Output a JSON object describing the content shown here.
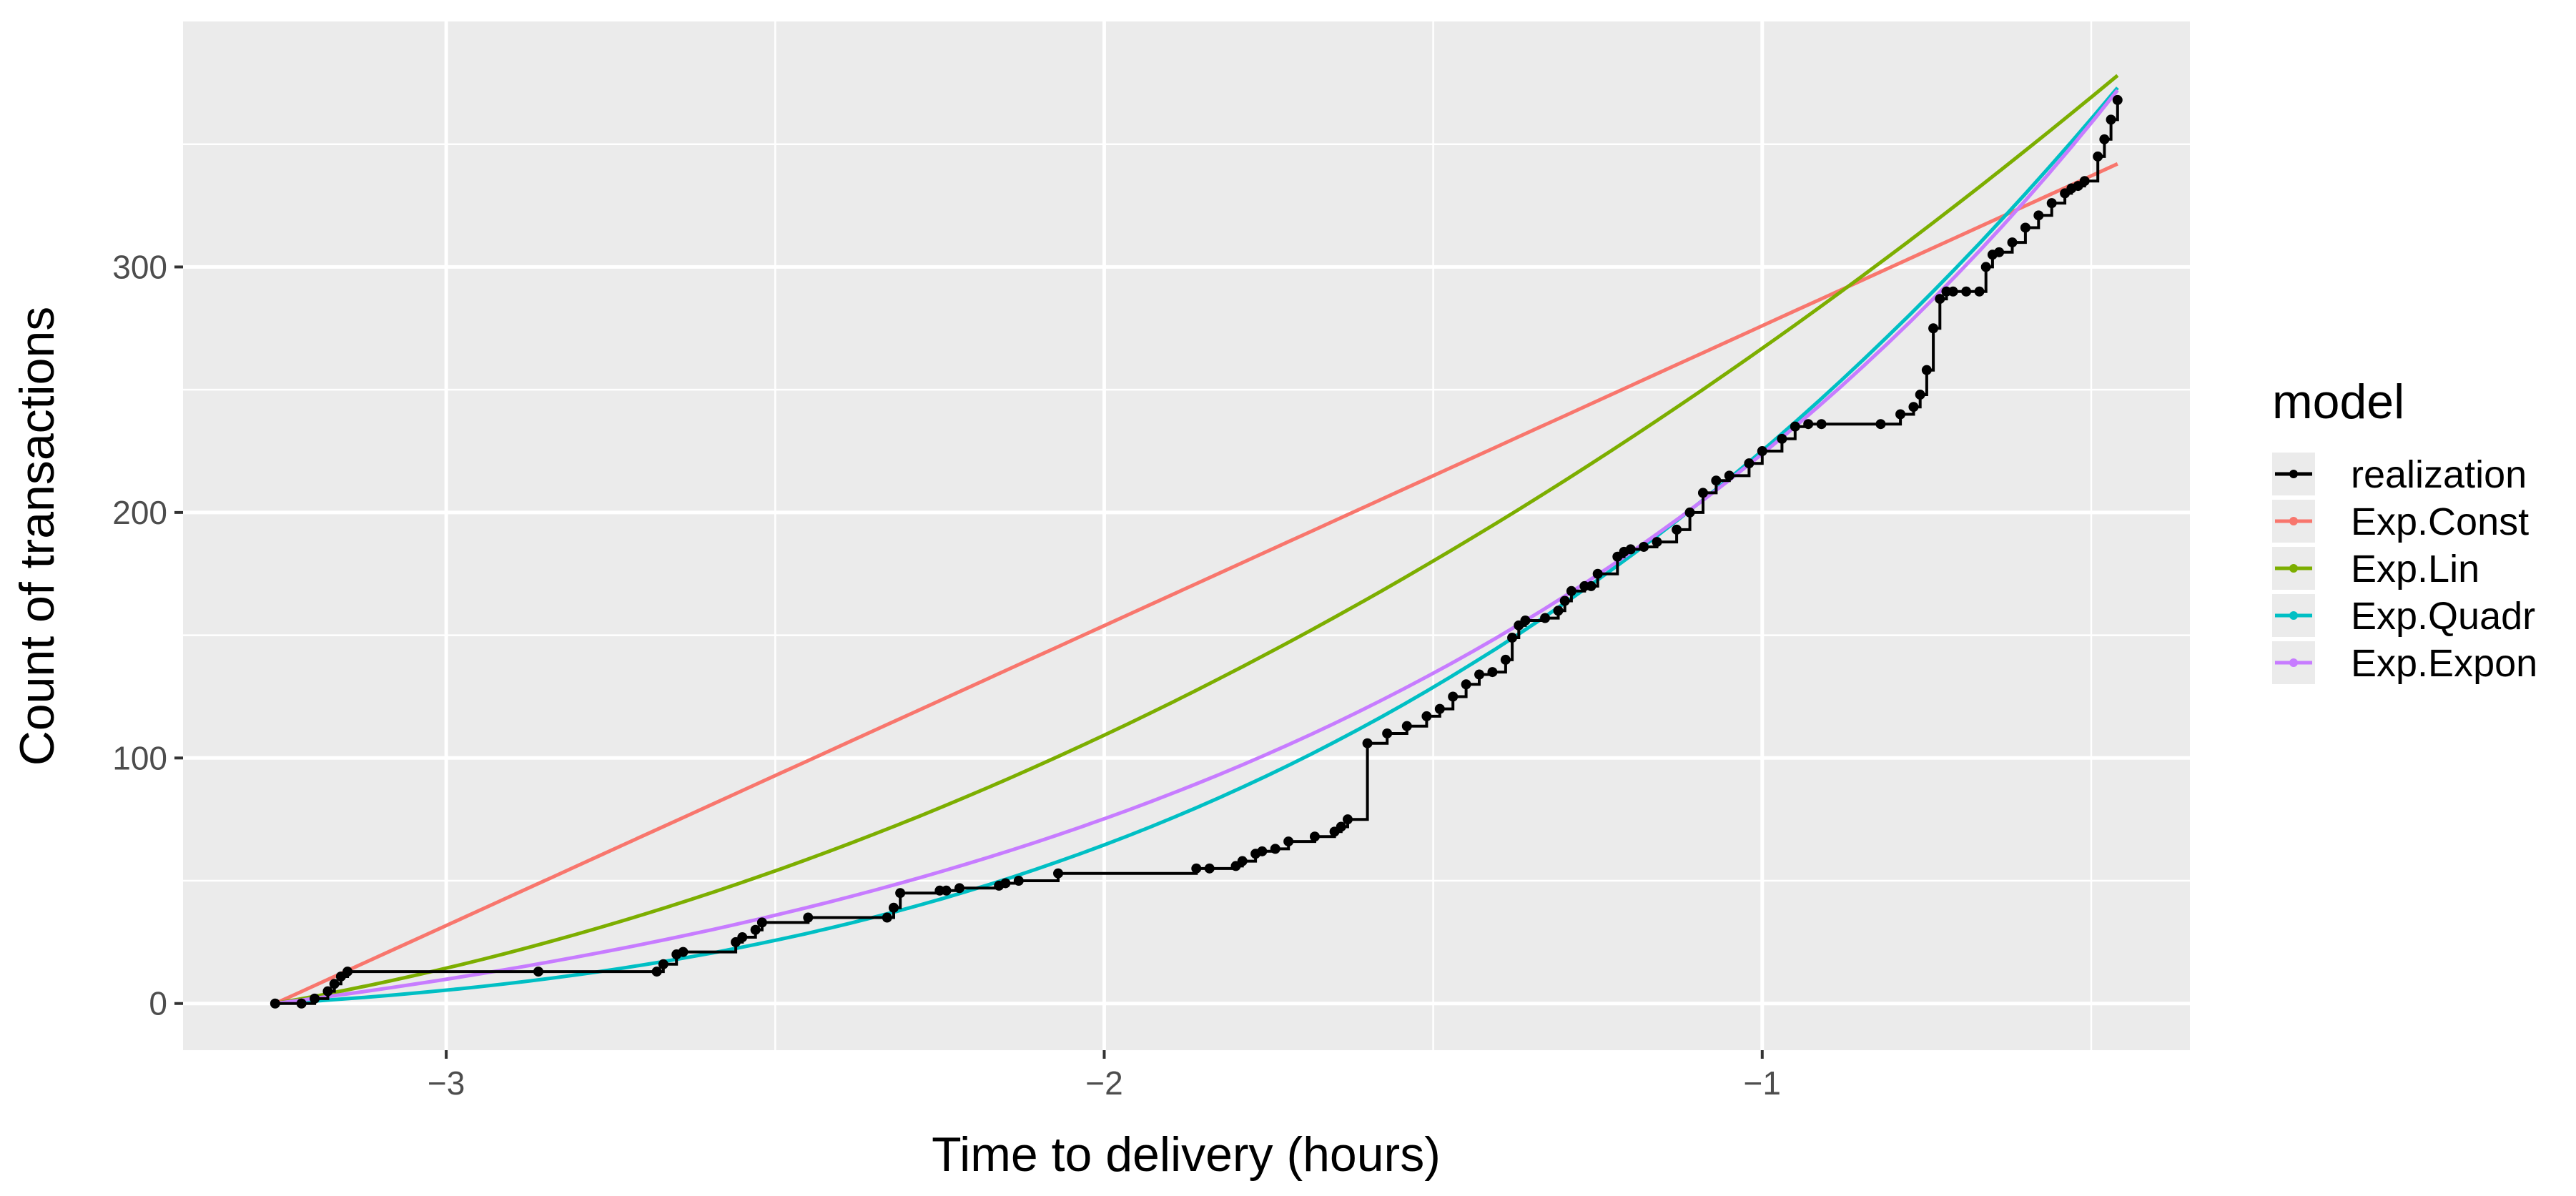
{
  "chart_data": {
    "type": "line",
    "xlabel": "Time to delivery (hours)",
    "ylabel": "Count of transactions",
    "xlim": [
      -3.4,
      -0.35
    ],
    "ylim": [
      -19,
      400
    ],
    "x_ticks": [
      -3,
      -2,
      -1
    ],
    "x_tick_labels": [
      "−3",
      "−2",
      "−1"
    ],
    "y_ticks": [
      0,
      100,
      200,
      300
    ],
    "y_tick_labels": [
      "0",
      "100",
      "200",
      "300"
    ],
    "grid": true,
    "panel_background": "#ebebeb",
    "legend": {
      "title": "model",
      "position": "right"
    },
    "series": [
      {
        "name": "realization",
        "color": "#000000",
        "x": [
          -3.26,
          -3.22,
          -3.2,
          -3.18,
          -3.17,
          -3.16,
          -3.15,
          -2.86,
          -2.68,
          -2.67,
          -2.65,
          -2.64,
          -2.56,
          -2.55,
          -2.53,
          -2.52,
          -2.45,
          -2.33,
          -2.32,
          -2.31,
          -2.25,
          -2.24,
          -2.22,
          -2.16,
          -2.15,
          -2.13,
          -2.07,
          -1.86,
          -1.84,
          -1.8,
          -1.79,
          -1.77,
          -1.76,
          -1.74,
          -1.72,
          -1.68,
          -1.65,
          -1.64,
          -1.63,
          -1.6,
          -1.57,
          -1.54,
          -1.51,
          -1.49,
          -1.47,
          -1.45,
          -1.43,
          -1.41,
          -1.39,
          -1.38,
          -1.37,
          -1.36,
          -1.33,
          -1.31,
          -1.3,
          -1.29,
          -1.27,
          -1.26,
          -1.25,
          -1.22,
          -1.21,
          -1.2,
          -1.18,
          -1.16,
          -1.13,
          -1.11,
          -1.09,
          -1.07,
          -1.05,
          -1.02,
          -1.0,
          -0.97,
          -0.95,
          -0.93,
          -0.91,
          -0.82,
          -0.79,
          -0.77,
          -0.76,
          -0.75,
          -0.74,
          -0.73,
          -0.72,
          -0.71,
          -0.69,
          -0.67,
          -0.66,
          -0.65,
          -0.64,
          -0.62,
          -0.6,
          -0.58,
          -0.56,
          -0.54,
          -0.53,
          -0.52,
          -0.51,
          -0.49,
          -0.48,
          -0.47,
          -0.46
        ],
        "y": [
          0,
          0,
          2,
          5,
          8,
          11,
          13,
          13,
          13,
          16,
          20,
          21,
          25,
          27,
          30,
          33,
          35,
          35,
          39,
          45,
          46,
          46,
          47,
          48,
          49,
          50,
          53,
          55,
          55,
          56,
          58,
          61,
          62,
          63,
          66,
          68,
          70,
          72,
          75,
          106,
          110,
          113,
          117,
          120,
          125,
          130,
          134,
          135,
          140,
          149,
          154,
          156,
          157,
          160,
          164,
          168,
          170,
          170,
          175,
          182,
          184,
          185,
          186,
          188,
          193,
          200,
          208,
          213,
          215,
          220,
          225,
          230,
          235,
          236,
          236,
          236,
          240,
          243,
          248,
          258,
          275,
          287,
          290,
          290,
          290,
          290,
          300,
          305,
          306,
          310,
          316,
          321,
          326,
          330,
          332,
          333,
          335,
          345,
          352,
          360,
          368
        ]
      },
      {
        "name": "Exp.Const",
        "color": "#f8766d",
        "fn": "const",
        "x0": -3.26,
        "x1": -0.46,
        "y_end": 342
      },
      {
        "name": "Exp.Lin",
        "color": "#7cae00",
        "fn": "lin",
        "x0": -3.26,
        "x1": -0.46,
        "y_end": 378
      },
      {
        "name": "Exp.Quadr",
        "color": "#00bfc4",
        "fn": "quadr",
        "x0": -3.26,
        "x1": -0.46,
        "y_end": 373
      },
      {
        "name": "Exp.Expon",
        "color": "#c77cff",
        "fn": "expon",
        "x0": -3.26,
        "x1": -0.46,
        "y_end": 372
      }
    ]
  }
}
